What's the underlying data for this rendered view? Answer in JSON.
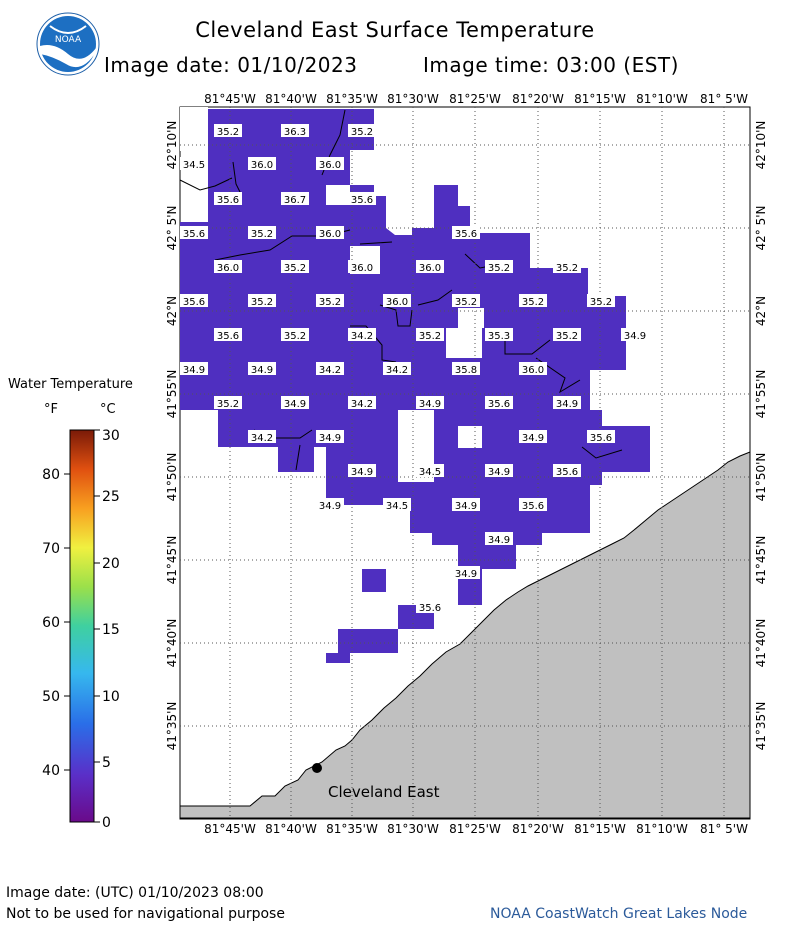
{
  "header": {
    "title": "Cleveland East Surface Temperature",
    "image_date": "Image date: 01/10/2023",
    "image_time": "Image time: 03:00 (EST)",
    "logo_text": "NOAA"
  },
  "map": {
    "lon_labels": [
      "81°45'W",
      "81°40'W",
      "81°35'W",
      "81°30'W",
      "81°25'W",
      "81°20'W",
      "81°15'W",
      "81°10'W",
      "81° 5'W"
    ],
    "lat_labels": [
      "42°10'N",
      "42° 5'N",
      "42°N",
      "41°55'N",
      "41°50'N",
      "41°45'N",
      "41°40'N",
      "41°35'N"
    ],
    "station_label": "Cleveland East",
    "colors": {
      "water": "#4f2fc0",
      "land": "#c0c0c0",
      "background": "#ffffff"
    },
    "temp_labels": [
      "35.2",
      "36.3",
      "35.2",
      "34.5",
      "36.0",
      "36.0",
      "35.6",
      "36.7",
      "35.6",
      "35.6",
      "35.2",
      "36.0",
      "35.6",
      "36.0",
      "35.2",
      "36.0",
      "36.0",
      "35.2",
      "35.2",
      "35.6",
      "35.2",
      "35.2",
      "36.0",
      "35.2",
      "35.2",
      "35.2",
      "35.6",
      "35.2",
      "34.2",
      "35.2",
      "35.3",
      "35.2",
      "34.9",
      "34.9",
      "34.9",
      "34.2",
      "34.2",
      "35.8",
      "36.0",
      "35.2",
      "34.9",
      "34.2",
      "34.9",
      "35.6",
      "34.9",
      "34.2",
      "34.9",
      "34.9",
      "35.6",
      "34.9",
      "34.5",
      "34.9",
      "35.6",
      "34.9",
      "34.5",
      "34.9",
      "35.6",
      "34.9",
      "34.9",
      "35.6"
    ]
  },
  "legend": {
    "title": "Water Temperature",
    "unit_f": "°F",
    "unit_c": "°C",
    "f_ticks": [
      "80",
      "70",
      "60",
      "50",
      "40"
    ],
    "c_ticks": [
      "30",
      "25",
      "20",
      "15",
      "10",
      "5",
      "0"
    ]
  },
  "footer": {
    "date": "Image date: (UTC) 01/10/2023  08:00",
    "note": "Not to be used for navigational purpose",
    "credit": "NOAA CoastWatch Great Lakes Node"
  }
}
